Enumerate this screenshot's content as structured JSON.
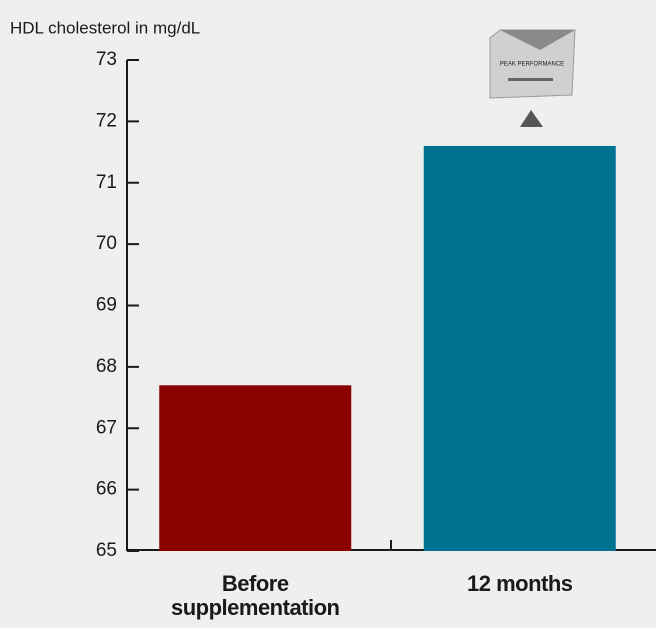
{
  "chart_data": {
    "type": "bar",
    "y_label": "HDL cholesterol in mg/dL",
    "categories": [
      "Before supplementation",
      "12 months"
    ],
    "values": [
      67.7,
      71.6
    ],
    "colors": [
      "#8b0000",
      "#007393"
    ],
    "ylim": [
      65,
      73
    ],
    "yticks": [
      65,
      66,
      67,
      68,
      69,
      70,
      71,
      72,
      73
    ],
    "product_label": "PEAK PERFORMANCE"
  }
}
